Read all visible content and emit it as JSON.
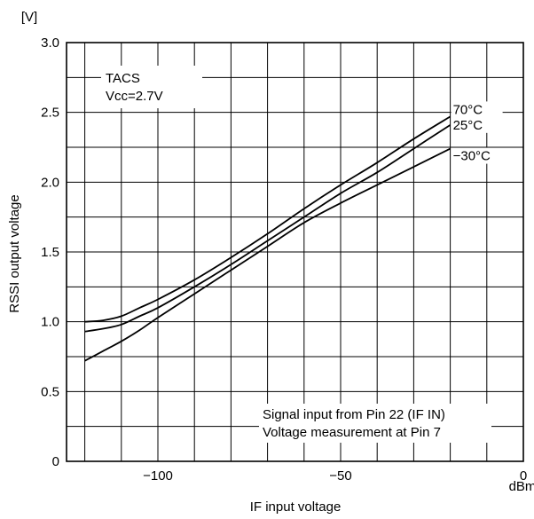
{
  "chart_data": {
    "type": "line",
    "ylabel": "RSSI output voltage",
    "xlabel": "IF input voltage",
    "y_unit": "[V]",
    "x_unit": "dBm",
    "xlim": [
      -125,
      0
    ],
    "ylim": [
      0,
      3.0
    ],
    "x_ticks": [
      {
        "value": -100,
        "label": "−100"
      },
      {
        "value": -50,
        "label": "−50"
      },
      {
        "value": 0,
        "label": "0"
      }
    ],
    "y_ticks": [
      {
        "value": 0,
        "label": "0"
      },
      {
        "value": 0.5,
        "label": "0.5"
      },
      {
        "value": 1.0,
        "label": "1.0"
      },
      {
        "value": 1.5,
        "label": "1.5"
      },
      {
        "value": 2.0,
        "label": "2.0"
      },
      {
        "value": 2.5,
        "label": "2.5"
      },
      {
        "value": 3.0,
        "label": "3.0"
      }
    ],
    "x_gridlines": [
      -120,
      -110,
      -100,
      -90,
      -80,
      -70,
      -60,
      -50,
      -40,
      -30,
      -20,
      -10
    ],
    "y_gridlines": [
      0.25,
      0.5,
      0.75,
      1.0,
      1.25,
      1.5,
      1.75,
      2.0,
      2.25,
      2.5,
      2.75
    ],
    "grid": true,
    "annotation_top": [
      "TACS",
      "Vcc=2.7V"
    ],
    "annotation_bottom": [
      "Signal input from Pin 22 (IF IN)",
      "Voltage measurement at Pin 7"
    ],
    "series": [
      {
        "name": "70°C",
        "color": "#000000",
        "x": [
          -120,
          -115,
          -110,
          -105,
          -100,
          -90,
          -80,
          -70,
          -60,
          -50,
          -40,
          -30,
          -20
        ],
        "y": [
          1.0,
          1.01,
          1.04,
          1.1,
          1.16,
          1.3,
          1.46,
          1.63,
          1.81,
          1.98,
          2.14,
          2.31,
          2.47
        ]
      },
      {
        "name": "25°C",
        "color": "#000000",
        "x": [
          -120,
          -115,
          -110,
          -105,
          -100,
          -90,
          -80,
          -70,
          -60,
          -50,
          -40,
          -30,
          -20
        ],
        "y": [
          0.93,
          0.95,
          0.98,
          1.04,
          1.1,
          1.25,
          1.41,
          1.58,
          1.75,
          1.92,
          2.07,
          2.24,
          2.41
        ]
      },
      {
        "name": "−30°C",
        "color": "#000000",
        "x": [
          -120,
          -115,
          -110,
          -105,
          -100,
          -90,
          -80,
          -70,
          -60,
          -50,
          -40,
          -30,
          -20
        ],
        "y": [
          0.72,
          0.79,
          0.86,
          0.94,
          1.03,
          1.2,
          1.37,
          1.54,
          1.71,
          1.85,
          1.98,
          2.11,
          2.24
        ]
      }
    ]
  }
}
